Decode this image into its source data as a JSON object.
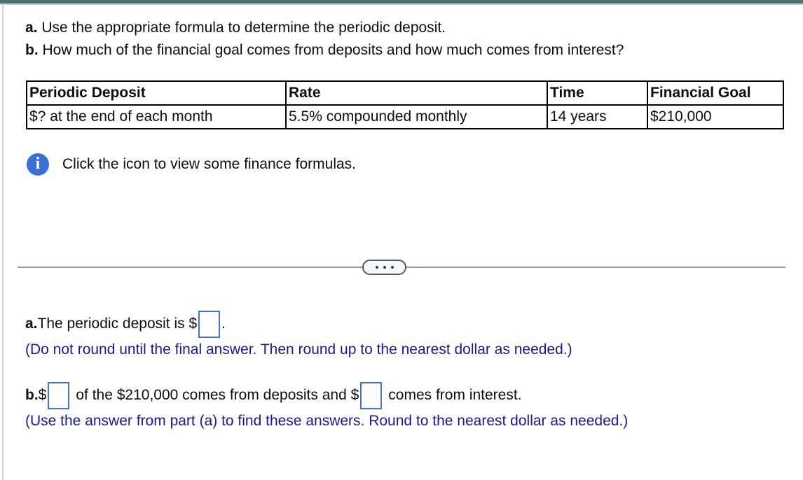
{
  "colors": {
    "top_bar": "#4a7074",
    "left_rule": "#d3d6db",
    "body_text": "#0e0e0e",
    "note_text": "#1a1a8e",
    "table_border": "#000000",
    "divider_line": "#8d96a0",
    "pill_border": "#4f5a66",
    "pill_background": "#f7f8fa",
    "answer_box_border": "#4672c8",
    "info_icon_background": "#3b6fd6",
    "info_icon_glyph_color": "#ffffff"
  },
  "question": {
    "a_label": "a.",
    "a_text": " Use the appropriate formula to determine the periodic deposit.",
    "b_label": "b.",
    "b_text": " How much of the financial goal comes from deposits and how much comes from interest?"
  },
  "table": {
    "headers": [
      "Periodic Deposit",
      "Rate",
      "Time",
      "Financial Goal"
    ],
    "row": [
      "$? at the end of each month",
      "5.5% compounded monthly",
      "14 years",
      "$210,000"
    ]
  },
  "info": {
    "icon": "info-icon",
    "glyph": "i",
    "text": "Click the icon to view some finance formulas."
  },
  "divider": {
    "icon": "ellipsis-icon"
  },
  "answers": {
    "a_label": "a.",
    "a_before": " The periodic deposit is $",
    "a_box_value": "",
    "a_after": ".",
    "a_note": "(Do not round until the final answer. Then round up to the nearest dollar as needed.)",
    "b_label": "b.",
    "b_before": " $",
    "b_box1_value": "",
    "b_mid": "of the $210,000 comes from deposits and $",
    "b_box2_value": "",
    "b_after": "comes from interest.",
    "b_note": "(Use the answer from part (a) to find these answers. Round to the nearest dollar as needed.)"
  }
}
